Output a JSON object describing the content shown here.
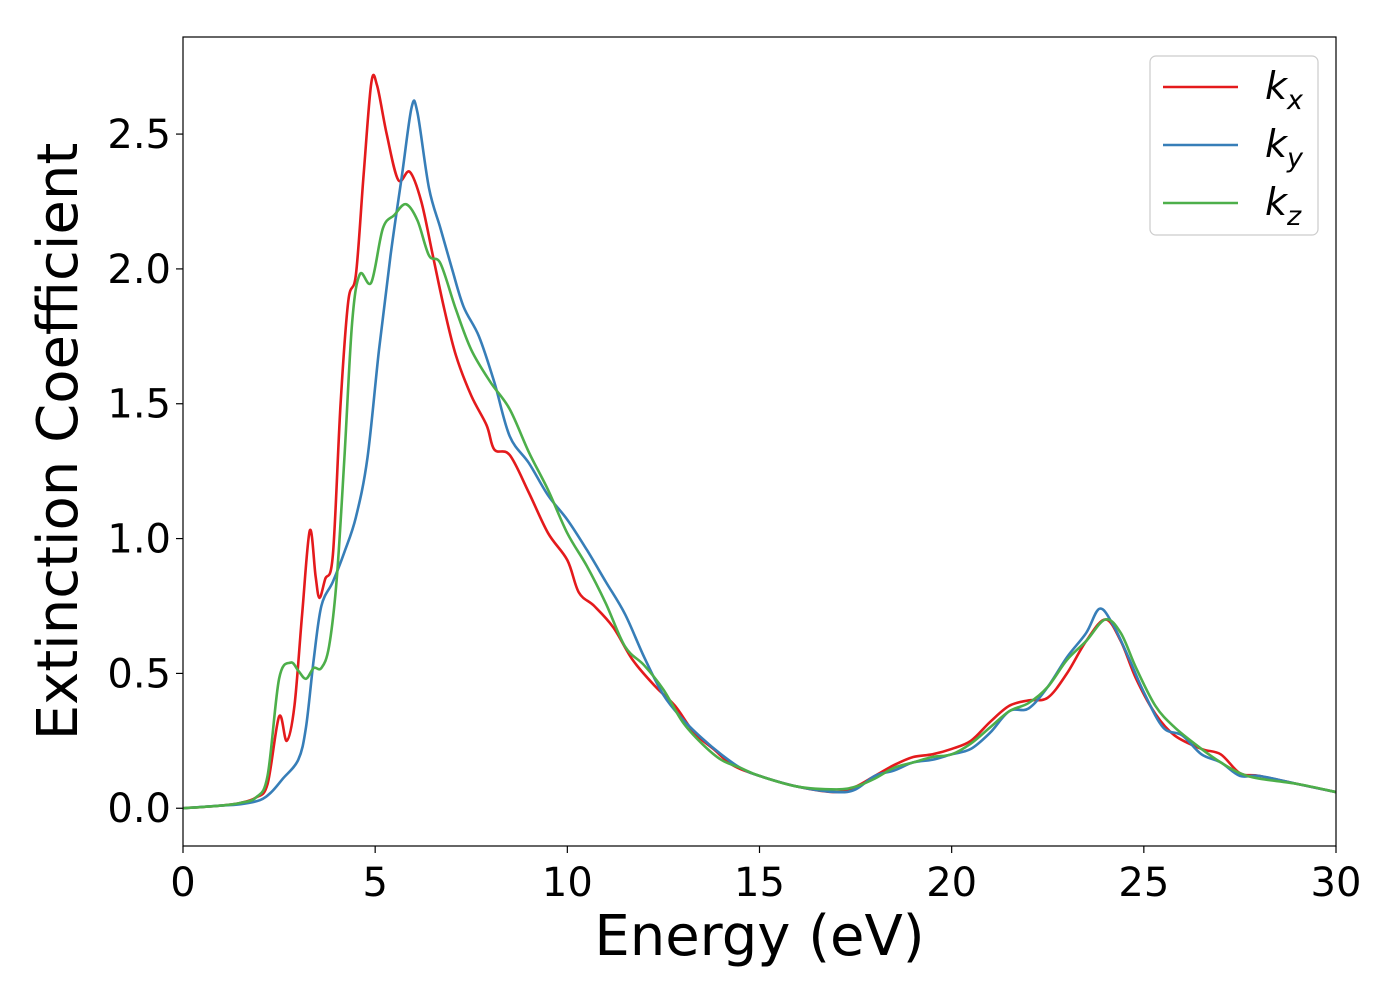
{
  "chart_data": {
    "type": "line",
    "title": "",
    "xlabel": "Energy (eV)",
    "ylabel": "Extinction Coefficient",
    "xlim": [
      0,
      30
    ],
    "ylim": [
      -0.14,
      2.86
    ],
    "xticks": [
      0,
      5,
      10,
      15,
      20,
      25,
      30
    ],
    "xtick_labels": [
      "0",
      "5",
      "10",
      "15",
      "20",
      "25",
      "30"
    ],
    "yticks": [
      0.0,
      0.5,
      1.0,
      1.5,
      2.0,
      2.5
    ],
    "ytick_labels": [
      "0.0",
      "0.5",
      "1.0",
      "1.5",
      "2.0",
      "2.5"
    ],
    "grid": false,
    "legend_position": "top-right",
    "series": [
      {
        "name": "k",
        "subscript": "x",
        "color": "#e41a1c",
        "points": [
          [
            0,
            0.0
          ],
          [
            1,
            0.01
          ],
          [
            1.5,
            0.02
          ],
          [
            1.9,
            0.04
          ],
          [
            2.2,
            0.09
          ],
          [
            2.5,
            0.34
          ],
          [
            2.7,
            0.25
          ],
          [
            2.9,
            0.38
          ],
          [
            3.1,
            0.72
          ],
          [
            3.3,
            1.03
          ],
          [
            3.45,
            0.86
          ],
          [
            3.55,
            0.78
          ],
          [
            3.7,
            0.85
          ],
          [
            3.9,
            0.94
          ],
          [
            4.1,
            1.5
          ],
          [
            4.3,
            1.88
          ],
          [
            4.5,
            1.98
          ],
          [
            4.7,
            2.35
          ],
          [
            4.9,
            2.69
          ],
          [
            5.05,
            2.68
          ],
          [
            5.3,
            2.5
          ],
          [
            5.6,
            2.33
          ],
          [
            5.9,
            2.36
          ],
          [
            6.2,
            2.25
          ],
          [
            6.5,
            2.05
          ],
          [
            6.8,
            1.85
          ],
          [
            7.1,
            1.68
          ],
          [
            7.5,
            1.53
          ],
          [
            7.9,
            1.42
          ],
          [
            8.1,
            1.33
          ],
          [
            8.5,
            1.31
          ],
          [
            9.0,
            1.17
          ],
          [
            9.5,
            1.02
          ],
          [
            10.0,
            0.92
          ],
          [
            10.3,
            0.8
          ],
          [
            10.7,
            0.75
          ],
          [
            11.2,
            0.67
          ],
          [
            11.7,
            0.55
          ],
          [
            12.3,
            0.45
          ],
          [
            12.8,
            0.38
          ],
          [
            13.3,
            0.28
          ],
          [
            13.8,
            0.22
          ],
          [
            14.3,
            0.16
          ],
          [
            15.0,
            0.12
          ],
          [
            16.0,
            0.08
          ],
          [
            17.0,
            0.06
          ],
          [
            17.5,
            0.08
          ],
          [
            18.0,
            0.12
          ],
          [
            18.5,
            0.16
          ],
          [
            19.0,
            0.19
          ],
          [
            19.5,
            0.2
          ],
          [
            20.0,
            0.22
          ],
          [
            20.5,
            0.25
          ],
          [
            21.0,
            0.32
          ],
          [
            21.5,
            0.38
          ],
          [
            22.0,
            0.4
          ],
          [
            22.5,
            0.41
          ],
          [
            23.0,
            0.5
          ],
          [
            23.5,
            0.62
          ],
          [
            24.0,
            0.7
          ],
          [
            24.4,
            0.62
          ],
          [
            24.8,
            0.48
          ],
          [
            25.3,
            0.35
          ],
          [
            25.8,
            0.27
          ],
          [
            26.5,
            0.22
          ],
          [
            27.0,
            0.2
          ],
          [
            27.5,
            0.13
          ],
          [
            28.0,
            0.12
          ],
          [
            29.0,
            0.09
          ],
          [
            30.0,
            0.06
          ]
        ]
      },
      {
        "name": "k",
        "subscript": "y",
        "color": "#377eb8",
        "points": [
          [
            0,
            0.0
          ],
          [
            1,
            0.01
          ],
          [
            1.5,
            0.015
          ],
          [
            2.0,
            0.03
          ],
          [
            2.3,
            0.06
          ],
          [
            2.6,
            0.11
          ],
          [
            3.0,
            0.18
          ],
          [
            3.2,
            0.3
          ],
          [
            3.4,
            0.55
          ],
          [
            3.6,
            0.75
          ],
          [
            3.9,
            0.84
          ],
          [
            4.2,
            0.95
          ],
          [
            4.5,
            1.08
          ],
          [
            4.8,
            1.3
          ],
          [
            5.1,
            1.7
          ],
          [
            5.4,
            2.05
          ],
          [
            5.7,
            2.35
          ],
          [
            5.95,
            2.6
          ],
          [
            6.1,
            2.58
          ],
          [
            6.4,
            2.3
          ],
          [
            6.7,
            2.15
          ],
          [
            7.0,
            2.0
          ],
          [
            7.3,
            1.86
          ],
          [
            7.7,
            1.75
          ],
          [
            8.1,
            1.58
          ],
          [
            8.5,
            1.38
          ],
          [
            9.0,
            1.28
          ],
          [
            9.5,
            1.16
          ],
          [
            10.0,
            1.07
          ],
          [
            10.5,
            0.96
          ],
          [
            11.0,
            0.84
          ],
          [
            11.5,
            0.72
          ],
          [
            12.0,
            0.56
          ],
          [
            12.5,
            0.42
          ],
          [
            13.0,
            0.33
          ],
          [
            13.5,
            0.26
          ],
          [
            14.0,
            0.2
          ],
          [
            14.5,
            0.15
          ],
          [
            15.0,
            0.12
          ],
          [
            16.0,
            0.08
          ],
          [
            17.0,
            0.06
          ],
          [
            17.5,
            0.07
          ],
          [
            18.0,
            0.12
          ],
          [
            18.5,
            0.14
          ],
          [
            19.0,
            0.17
          ],
          [
            19.5,
            0.18
          ],
          [
            20.0,
            0.2
          ],
          [
            20.5,
            0.22
          ],
          [
            21.0,
            0.28
          ],
          [
            21.5,
            0.36
          ],
          [
            22.0,
            0.37
          ],
          [
            22.5,
            0.45
          ],
          [
            23.0,
            0.56
          ],
          [
            23.5,
            0.65
          ],
          [
            23.85,
            0.74
          ],
          [
            24.2,
            0.68
          ],
          [
            24.6,
            0.56
          ],
          [
            25.0,
            0.43
          ],
          [
            25.5,
            0.3
          ],
          [
            26.0,
            0.27
          ],
          [
            26.5,
            0.2
          ],
          [
            27.0,
            0.17
          ],
          [
            27.5,
            0.12
          ],
          [
            28.0,
            0.12
          ],
          [
            29.0,
            0.09
          ],
          [
            30.0,
            0.06
          ]
        ]
      },
      {
        "name": "k",
        "subscript": "z",
        "color": "#4daf4a",
        "points": [
          [
            0,
            0.0
          ],
          [
            1,
            0.01
          ],
          [
            1.5,
            0.02
          ],
          [
            1.9,
            0.04
          ],
          [
            2.2,
            0.12
          ],
          [
            2.5,
            0.48
          ],
          [
            2.8,
            0.54
          ],
          [
            3.0,
            0.51
          ],
          [
            3.2,
            0.48
          ],
          [
            3.4,
            0.52
          ],
          [
            3.6,
            0.52
          ],
          [
            3.8,
            0.6
          ],
          [
            4.0,
            0.85
          ],
          [
            4.2,
            1.3
          ],
          [
            4.4,
            1.8
          ],
          [
            4.6,
            1.98
          ],
          [
            4.9,
            1.95
          ],
          [
            5.2,
            2.15
          ],
          [
            5.5,
            2.2
          ],
          [
            5.8,
            2.24
          ],
          [
            6.1,
            2.18
          ],
          [
            6.4,
            2.05
          ],
          [
            6.7,
            2.02
          ],
          [
            7.1,
            1.85
          ],
          [
            7.5,
            1.7
          ],
          [
            8.0,
            1.58
          ],
          [
            8.5,
            1.48
          ],
          [
            9.0,
            1.32
          ],
          [
            9.5,
            1.18
          ],
          [
            10.0,
            1.02
          ],
          [
            10.5,
            0.9
          ],
          [
            11.0,
            0.76
          ],
          [
            11.5,
            0.6
          ],
          [
            12.0,
            0.53
          ],
          [
            12.5,
            0.44
          ],
          [
            13.0,
            0.32
          ],
          [
            13.5,
            0.24
          ],
          [
            14.0,
            0.18
          ],
          [
            14.5,
            0.15
          ],
          [
            15.0,
            0.12
          ],
          [
            16.0,
            0.08
          ],
          [
            17.0,
            0.07
          ],
          [
            17.5,
            0.08
          ],
          [
            18.0,
            0.11
          ],
          [
            18.5,
            0.15
          ],
          [
            19.0,
            0.17
          ],
          [
            19.5,
            0.19
          ],
          [
            20.0,
            0.2
          ],
          [
            20.5,
            0.24
          ],
          [
            21.0,
            0.3
          ],
          [
            21.5,
            0.36
          ],
          [
            22.0,
            0.39
          ],
          [
            22.5,
            0.45
          ],
          [
            23.0,
            0.55
          ],
          [
            23.5,
            0.62
          ],
          [
            24.0,
            0.7
          ],
          [
            24.4,
            0.65
          ],
          [
            24.8,
            0.52
          ],
          [
            25.3,
            0.38
          ],
          [
            25.8,
            0.3
          ],
          [
            26.5,
            0.22
          ],
          [
            27.0,
            0.17
          ],
          [
            27.5,
            0.13
          ],
          [
            28.0,
            0.11
          ],
          [
            29.0,
            0.09
          ],
          [
            30.0,
            0.06
          ]
        ]
      }
    ]
  }
}
